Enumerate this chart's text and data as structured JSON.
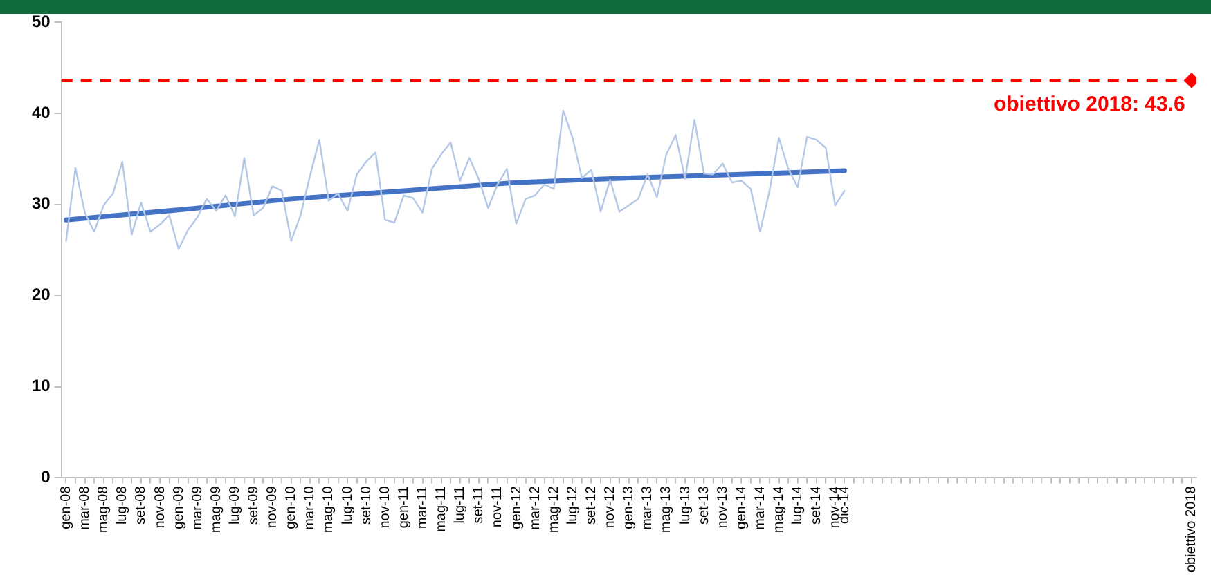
{
  "chart_data": {
    "type": "line",
    "categories": [
      "gen-08",
      null,
      "mar-08",
      null,
      "mag-08",
      null,
      "lug-08",
      null,
      "set-08",
      null,
      "nov-08",
      null,
      "gen-09",
      null,
      "mar-09",
      null,
      "mag-09",
      null,
      "lug-09",
      null,
      "set-09",
      null,
      "nov-09",
      null,
      "gen-10",
      null,
      "mar-10",
      null,
      "mag-10",
      null,
      "lug-10",
      null,
      "set-10",
      null,
      "nov-10",
      null,
      "gen-11",
      null,
      "mar-11",
      null,
      "mag-11",
      null,
      "lug-11",
      null,
      "set-11",
      null,
      "nov-11",
      null,
      "gen-12",
      null,
      "mar-12",
      null,
      "mag-12",
      null,
      "lug-12",
      null,
      "set-12",
      null,
      "nov-12",
      null,
      "gen-13",
      null,
      "mar-13",
      null,
      "mag-13",
      null,
      "lug-13",
      null,
      "set-13",
      null,
      "nov-13",
      null,
      "gen-14",
      null,
      "mar-14",
      null,
      "mag-14",
      null,
      "lug-14",
      null,
      "set-14",
      null,
      "nov-14",
      "dic-14",
      null,
      null,
      null,
      null,
      null,
      null,
      null,
      null,
      null,
      null,
      null,
      null,
      null,
      null,
      null,
      null,
      null,
      null,
      null,
      null,
      null,
      null,
      null,
      null,
      null,
      null,
      null,
      null,
      null,
      null,
      null,
      null,
      null,
      null,
      null,
      null,
      "obiettivo 2018"
    ],
    "series": [
      {
        "color": "#b4c7e7",
        "values": [
          26.0,
          34.0,
          29.1,
          27.0,
          29.9,
          31.2,
          34.7,
          26.7,
          30.2,
          27.0,
          27.8,
          28.8,
          25.1,
          27.2,
          28.6,
          30.6,
          29.3,
          31.0,
          28.7,
          35.1,
          28.8,
          29.6,
          32.0,
          31.5,
          26.0,
          28.8,
          33.1,
          37.1,
          30.4,
          31.2,
          29.3,
          33.3,
          34.7,
          35.7,
          28.3,
          28.0,
          31.0,
          30.7,
          29.1,
          33.9,
          35.5,
          36.8,
          32.6,
          35.1,
          32.8,
          29.6,
          32.2,
          33.9,
          27.9,
          30.6,
          31.0,
          32.2,
          31.7,
          40.3,
          37.3,
          32.9,
          33.8,
          29.2,
          32.7,
          29.2,
          29.9,
          30.6,
          33.3,
          30.8,
          35.5,
          37.6,
          32.8,
          39.3,
          33.4,
          33.3,
          34.5,
          32.4,
          32.6,
          31.7,
          27.0,
          31.5,
          37.3,
          33.9,
          31.9,
          37.4,
          37.1,
          36.2,
          29.9,
          31.5,
          null,
          null,
          null,
          null,
          null,
          null,
          null,
          null,
          null,
          null,
          null,
          null,
          null,
          null,
          null,
          null,
          null,
          null,
          null,
          null,
          null,
          null,
          null,
          null,
          null,
          null,
          null,
          null,
          null,
          null,
          null,
          null,
          null,
          null,
          null,
          null,
          null
        ]
      },
      {
        "type": "line",
        "color": "#4472c4",
        "x": [
          "gen-08",
          "gen-09",
          "gen-10",
          "gen-11",
          "gen-12",
          "gen-13",
          "gen-14",
          "dic-14"
        ],
        "values": [
          28.3,
          29.4,
          30.6,
          31.5,
          32.4,
          32.9,
          33.3,
          33.7
        ]
      },
      {
        "type": "scatter",
        "color": "#ff0000",
        "marker": "diamond",
        "x": [
          "obiettivo 2018"
        ],
        "values": [
          43.6
        ]
      }
    ],
    "ylim": [
      0,
      50
    ],
    "yticks": [
      0,
      10,
      20,
      30,
      40,
      50
    ],
    "marker": "none",
    "ref_lines": [
      {
        "axis": "y",
        "value": 43.6,
        "label": "obiettivo 2018: 43.6",
        "color": "#ff0000",
        "line_style": "dashed"
      }
    ]
  }
}
